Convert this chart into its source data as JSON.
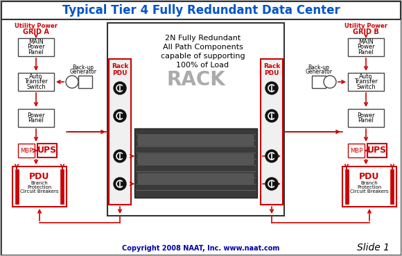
{
  "title": "Typical Tier 4 Fully Redundant Data Center",
  "title_color": "#0055CC",
  "bg_color": "#C8C8C8",
  "inner_bg": "#E8E8E8",
  "center_text": [
    "2N Fully Redundant",
    "All Path Components",
    "capable of supporting",
    "100% of Load"
  ],
  "copyright": "Copyright 2008 NAAT, Inc. www.naat.com",
  "slide": "Slide 1",
  "red": "#CC0000",
  "box_bg": "#E0E0E0",
  "box_border": "#444444",
  "white": "#FFFFFF"
}
